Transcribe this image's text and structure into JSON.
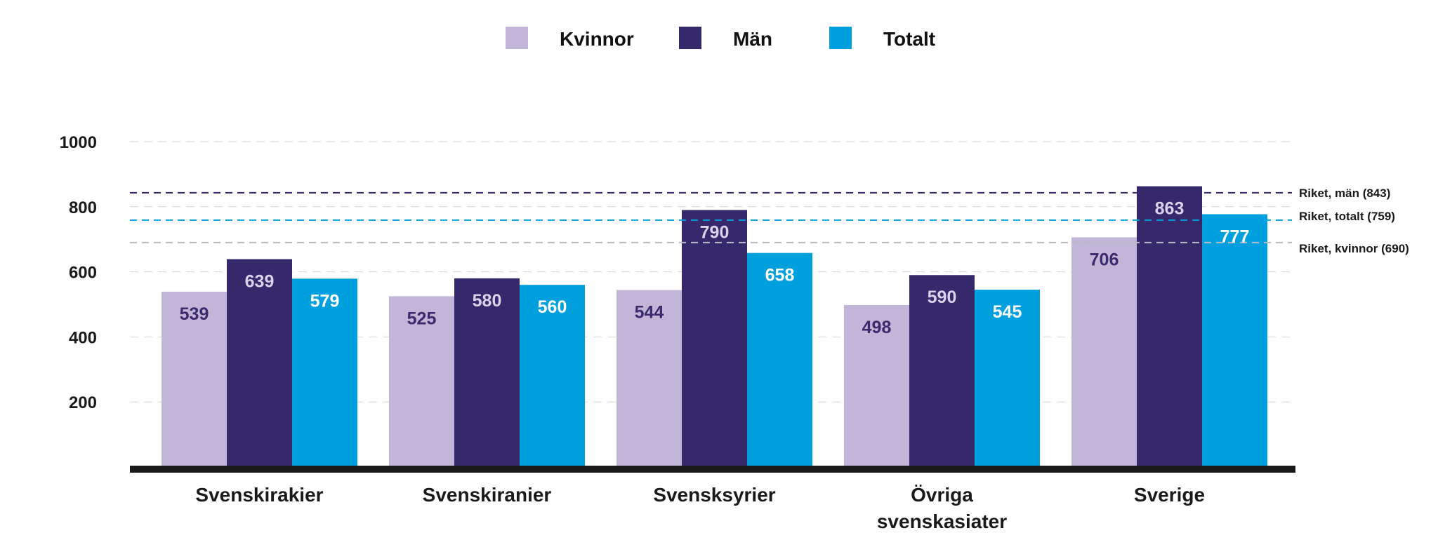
{
  "chart_data": {
    "type": "bar",
    "categories": [
      [
        "Svenskirakier"
      ],
      [
        "Svenskiranier"
      ],
      [
        "Svensksyrier"
      ],
      [
        "Övriga",
        "svenskasiater"
      ],
      [
        "Sverige"
      ]
    ],
    "series": [
      {
        "name": "Kvinnor",
        "color": "#c2b6d8",
        "label_color": "#3a2a6e",
        "values": [
          539,
          525,
          544,
          498,
          706
        ]
      },
      {
        "name": "Män",
        "color": "#35286b",
        "label_color": "#d9d2ea",
        "values": [
          639,
          580,
          790,
          590,
          863
        ]
      },
      {
        "name": "Totalt",
        "color": "#00a0df",
        "label_color": "#ffffff",
        "values": [
          579,
          560,
          658,
          545,
          777
        ]
      }
    ],
    "y_ticks": [
      "200",
      "400",
      "600",
      "800",
      "1000"
    ],
    "ylim": [
      0,
      1000
    ],
    "grid": true,
    "legend_position": "top-center",
    "reference_lines": [
      {
        "label": "Riket, män (843)",
        "value": 843,
        "color": "#35286b"
      },
      {
        "label": "Riket, totalt (759)",
        "value": 759,
        "color": "#00a0df"
      },
      {
        "label": "Riket, kvinnor (690)",
        "value": 690,
        "color": "#b9b9c4"
      }
    ],
    "baseline_color": "#1a1a1a"
  }
}
